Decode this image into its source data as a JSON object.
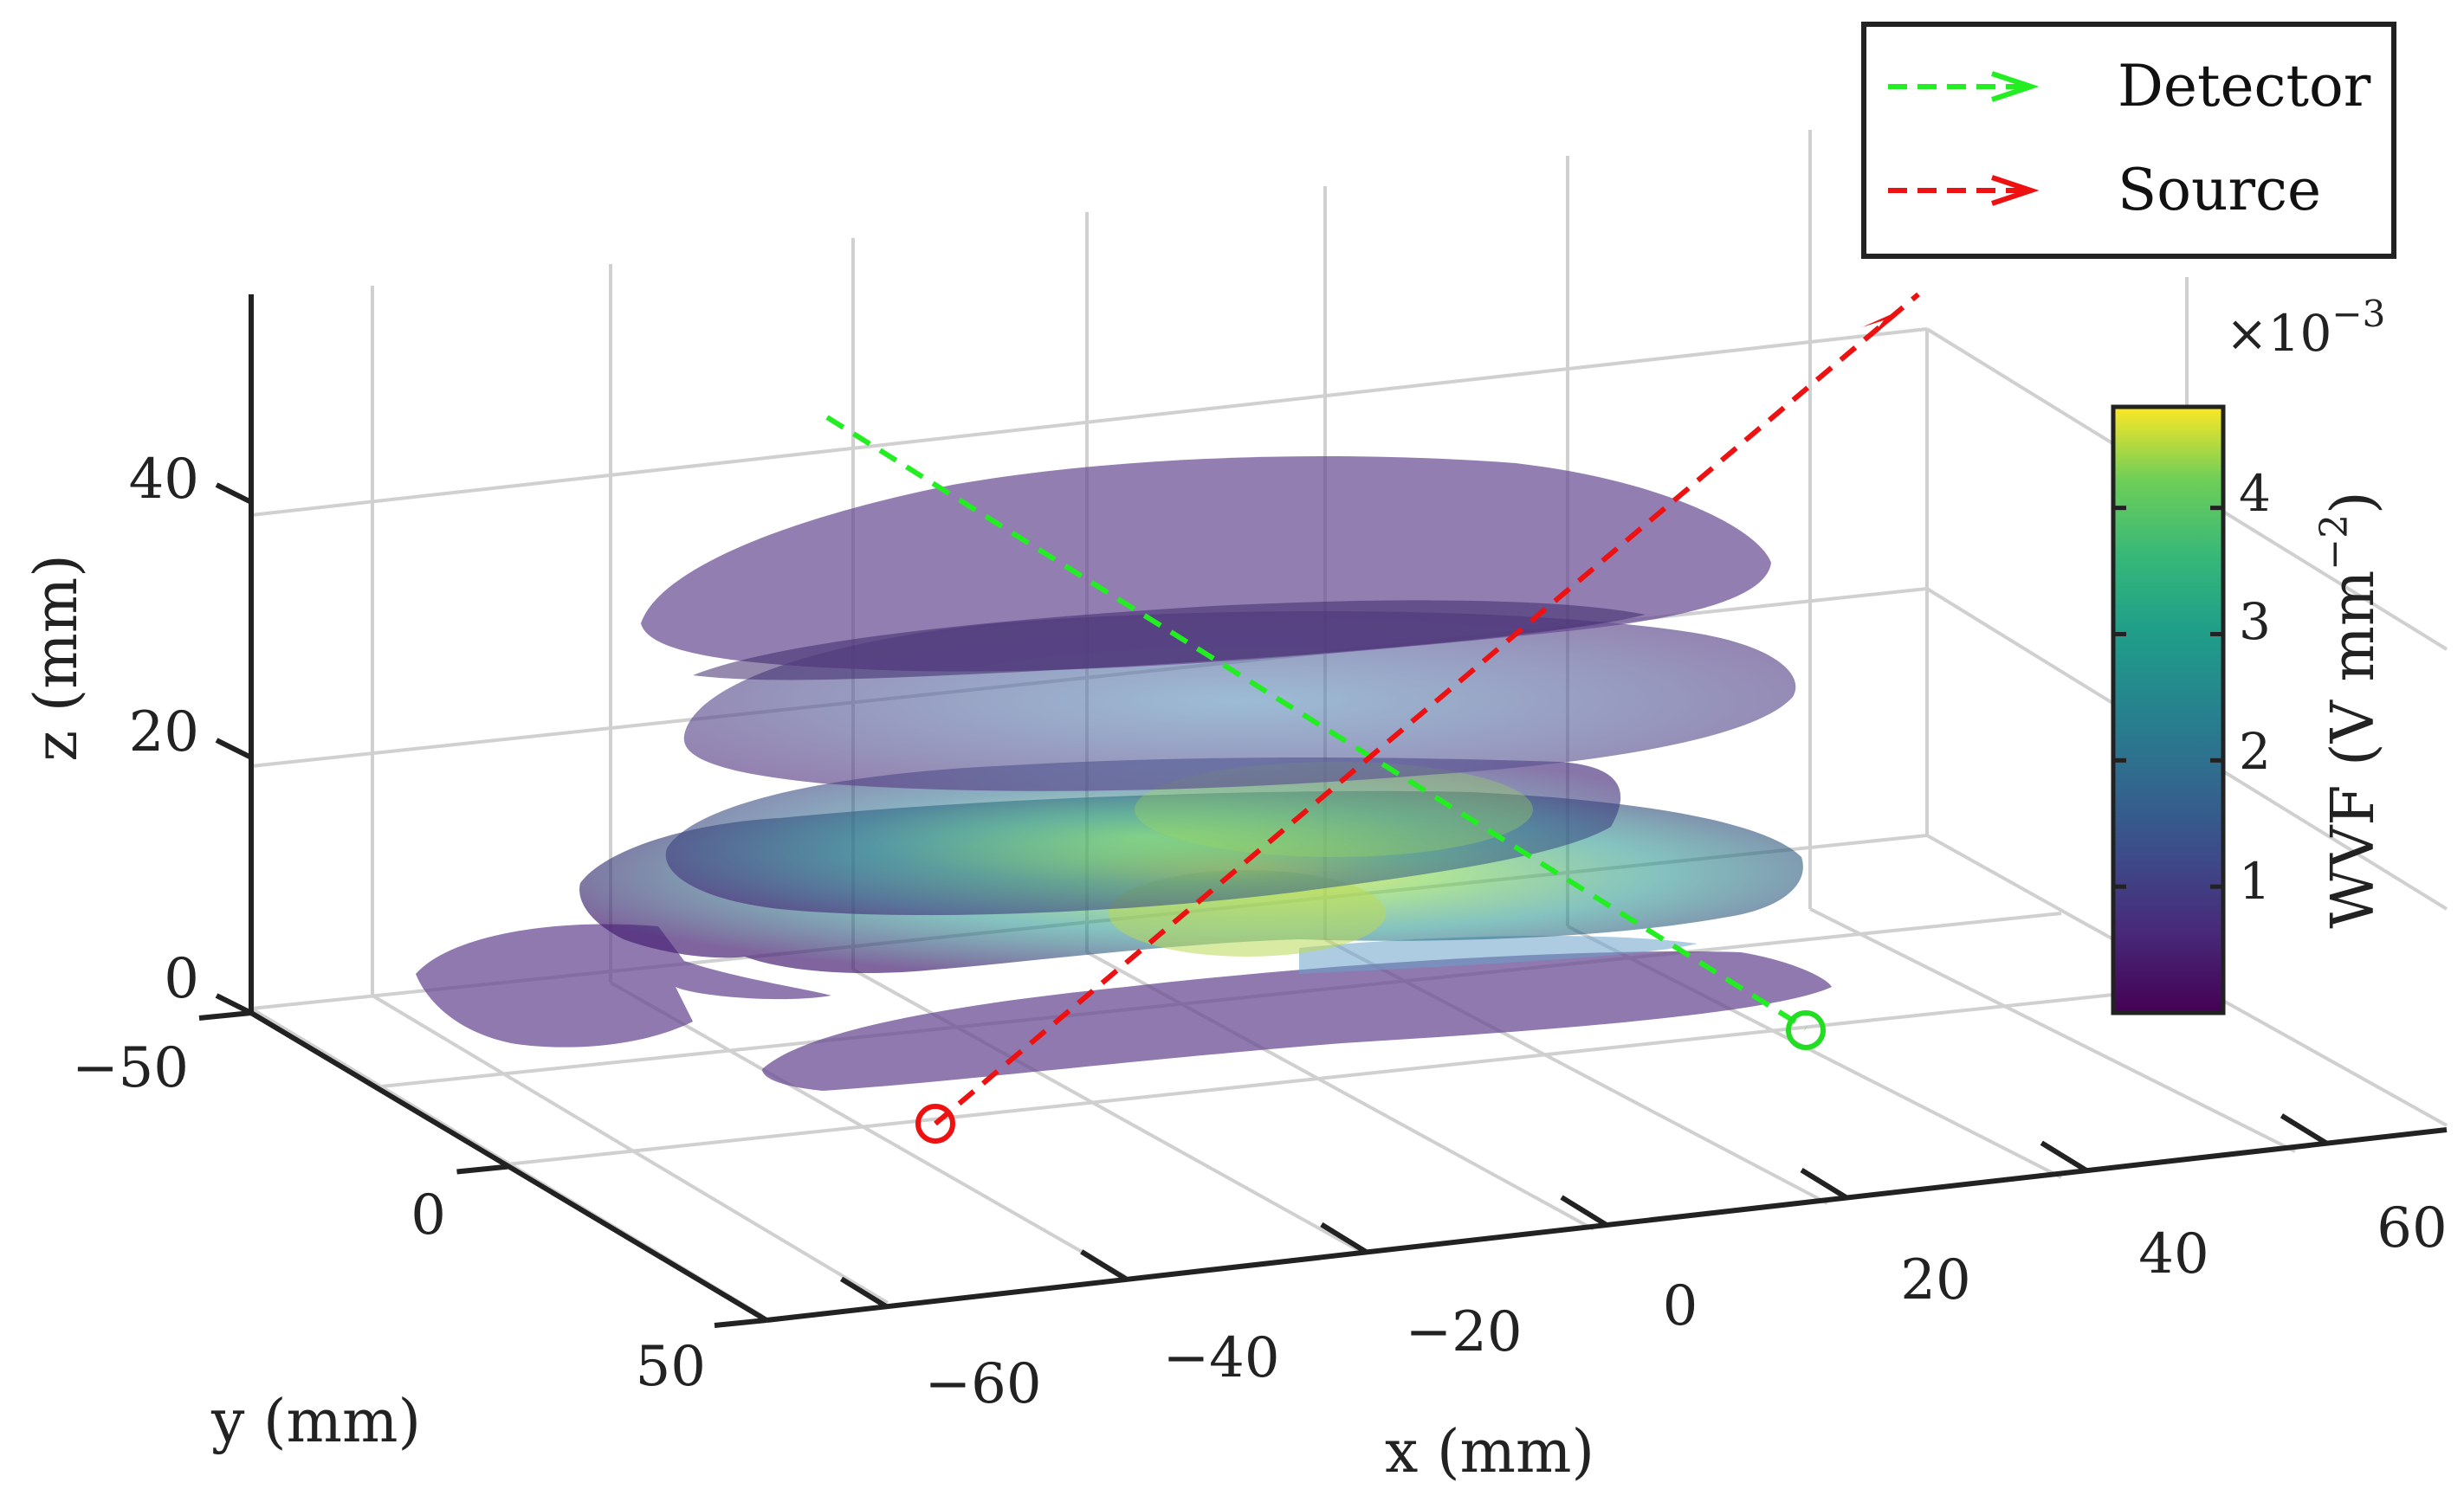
{
  "chart_data": {
    "type": "3d-slices",
    "xlabel": "x (mm)",
    "ylabel": "y (mm)",
    "zlabel": "z (mm)",
    "x_ticks": [
      "−60",
      "−40",
      "−20",
      "0",
      "20",
      "40",
      "60"
    ],
    "y_ticks": [
      "−50",
      "0",
      "50"
    ],
    "z_ticks": [
      "0",
      "20",
      "40"
    ],
    "xlim": [
      -70,
      70
    ],
    "ylim": [
      -50,
      50
    ],
    "zlim": [
      0,
      55
    ],
    "slice_z": [
      0,
      10,
      20,
      30,
      40
    ],
    "colorbar": {
      "label": "WVF (V mm",
      "label_sup": "−2",
      "label_end": ")",
      "multiplier_base": "×10",
      "multiplier_exp": "−3",
      "ticks": [
        "1",
        "2",
        "3",
        "4"
      ],
      "range": [
        0,
        4.8
      ],
      "colormap": "viridis"
    },
    "legend": [
      {
        "label": "Detector",
        "color": "#22ee22",
        "style": "dashed-arrow"
      },
      {
        "label": "Source",
        "color": "#ee1111",
        "style": "dashed-arrow"
      }
    ],
    "markers": [
      {
        "name": "source-position",
        "symbol": "circle",
        "color": "#ee1111"
      },
      {
        "name": "detector-position",
        "symbol": "circle",
        "color": "#22dd22"
      }
    ]
  }
}
